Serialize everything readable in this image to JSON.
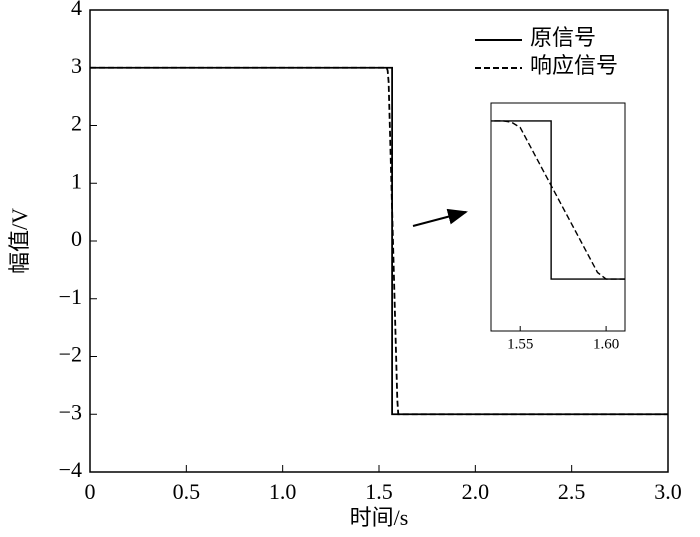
{
  "chart_data": [
    {
      "type": "line",
      "xlabel": "时间/s",
      "ylabel": "幅值/V",
      "xlim": [
        0,
        3
      ],
      "ylim": [
        -4,
        4
      ],
      "xticks": [
        0,
        0.5,
        {
          "value": 1,
          "label": "1.0"
        },
        1.5,
        {
          "value": 2,
          "label": "2.0"
        },
        2.5,
        {
          "value": 3,
          "label": "3.0"
        }
      ],
      "yticks": [
        {
          "value": -4,
          "label": "−4"
        },
        {
          "value": -3,
          "label": "−3"
        },
        {
          "value": -2,
          "label": "−2"
        },
        {
          "value": -1,
          "label": "−1"
        },
        0,
        1,
        2,
        3,
        4
      ],
      "legend": "upper right",
      "series": [
        {
          "name": "原信号",
          "color": "#000000",
          "style": "solid",
          "x": [
            0,
            1.568,
            1.568,
            3
          ],
          "values": [
            3,
            3,
            -3,
            -3
          ]
        },
        {
          "name": "响应信号",
          "color": "#000000",
          "style": "dashed",
          "x": [
            0,
            1.54,
            1.545,
            1.55,
            1.595,
            1.6,
            3
          ],
          "values": [
            3,
            3,
            2.95,
            2.75,
            -2.75,
            -3,
            -3
          ]
        }
      ]
    },
    {
      "type": "inset",
      "xlim": [
        1.533,
        1.611
      ],
      "ylim": [
        -4.97,
        3.68
      ],
      "xticks": [
        1.55,
        {
          "value": 1.6,
          "label": "1.60"
        }
      ]
    }
  ]
}
